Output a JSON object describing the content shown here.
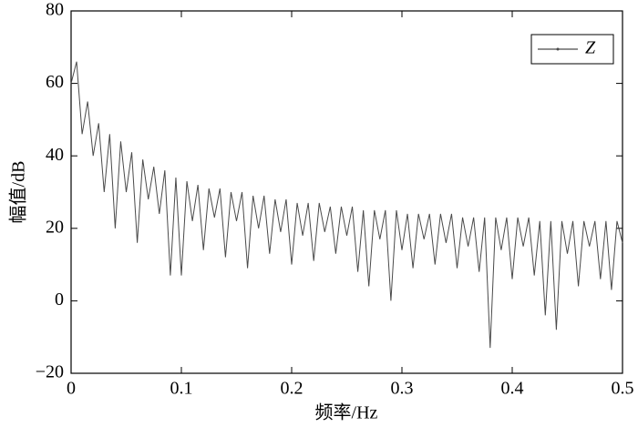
{
  "chart_data": {
    "type": "line",
    "xlabel": "频率/Hz",
    "ylabel": "幅值/dB",
    "x": [
      0,
      0.005,
      0.01,
      0.015,
      0.02,
      0.025,
      0.03,
      0.035,
      0.04,
      0.045,
      0.05,
      0.055,
      0.06,
      0.065,
      0.07,
      0.075,
      0.08,
      0.085,
      0.09,
      0.095,
      0.1,
      0.105,
      0.11,
      0.115,
      0.12,
      0.125,
      0.13,
      0.135,
      0.14,
      0.145,
      0.15,
      0.155,
      0.16,
      0.165,
      0.17,
      0.175,
      0.18,
      0.185,
      0.19,
      0.195,
      0.2,
      0.205,
      0.21,
      0.215,
      0.22,
      0.225,
      0.23,
      0.235,
      0.24,
      0.245,
      0.25,
      0.255,
      0.26,
      0.265,
      0.27,
      0.275,
      0.28,
      0.285,
      0.29,
      0.295,
      0.3,
      0.305,
      0.31,
      0.315,
      0.32,
      0.325,
      0.33,
      0.335,
      0.34,
      0.345,
      0.35,
      0.355,
      0.36,
      0.365,
      0.37,
      0.375,
      0.38,
      0.385,
      0.39,
      0.395,
      0.4,
      0.405,
      0.41,
      0.415,
      0.42,
      0.425,
      0.43,
      0.435,
      0.44,
      0.445,
      0.45,
      0.455,
      0.46,
      0.465,
      0.47,
      0.475,
      0.48,
      0.485,
      0.49,
      0.495,
      0.5
    ],
    "series": [
      {
        "name": "Z",
        "color": "#4a4a4a",
        "values": [
          60,
          66,
          46,
          55,
          40,
          49,
          30,
          46,
          20,
          44,
          30,
          41,
          16,
          39,
          28,
          37,
          24,
          36,
          7,
          34,
          7,
          33,
          22,
          32,
          14,
          31,
          23,
          31,
          12,
          30,
          22,
          30,
          9,
          29,
          20,
          29,
          13,
          28,
          19,
          28,
          10,
          27,
          18,
          27,
          11,
          27,
          19,
          26,
          13,
          26,
          18,
          26,
          8,
          25,
          4,
          25,
          17,
          25,
          0,
          25,
          14,
          24,
          9,
          24,
          17,
          24,
          10,
          24,
          16,
          24,
          9,
          23,
          15,
          23,
          8,
          23,
          -13,
          23,
          14,
          23,
          6,
          23,
          15,
          23,
          7,
          22,
          -4,
          22,
          -8,
          22,
          13,
          22,
          4,
          22,
          15,
          22,
          6,
          22,
          3,
          22,
          16
        ]
      }
    ],
    "xlim": [
      0,
      0.5
    ],
    "xticks": [
      0,
      0.1,
      0.2,
      0.3,
      0.4,
      0.5
    ],
    "ylim": [
      -20,
      80
    ],
    "yticks": [
      {
        "value": -20,
        "label": "−20"
      },
      0,
      20,
      40,
      60,
      80
    ],
    "legend": "upper right"
  }
}
